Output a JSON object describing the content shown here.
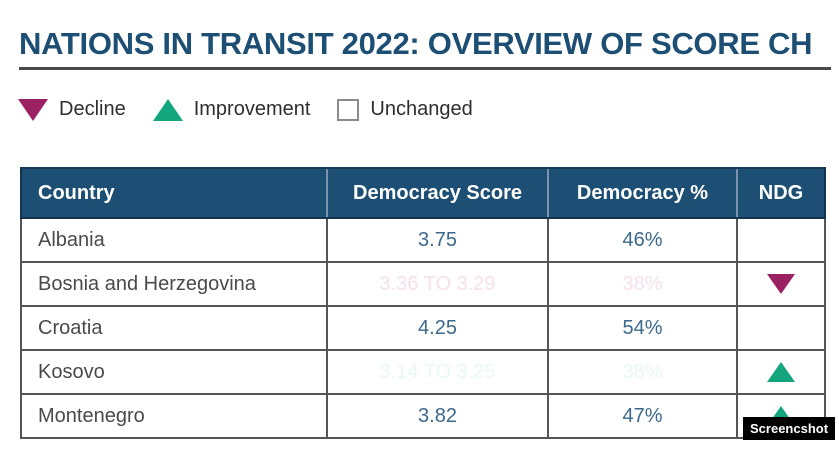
{
  "title": "NATIONS IN TRANSIT 2022: OVERVIEW OF SCORE CH",
  "legend": {
    "decline_label": "Decline",
    "improvement_label": "Improvement",
    "unchanged_label": "Unchanged"
  },
  "chart_data": {
    "type": "table",
    "title": "NATIONS IN TRANSIT 2022: OVERVIEW OF SCORE CH",
    "columns": [
      "Country",
      "Democracy Score",
      "Democracy %",
      "NDG"
    ],
    "rows": [
      {
        "country": "Albania",
        "democracy_score": "3.75",
        "democracy_pct": "46%",
        "ndg": "unchanged"
      },
      {
        "country": "Bosnia and Herzegovina",
        "democracy_score": "3.36 TO 3.29",
        "democracy_pct": "38%",
        "ndg": "decline"
      },
      {
        "country": "Croatia",
        "democracy_score": "4.25",
        "democracy_pct": "54%",
        "ndg": "unchanged"
      },
      {
        "country": "Kosovo",
        "democracy_score": "3.14 TO 3.25",
        "democracy_pct": "38%",
        "ndg": "improvement"
      },
      {
        "country": "Montenegro",
        "democracy_score": "3.82",
        "democracy_pct": "47%",
        "ndg": "improvement"
      }
    ]
  },
  "watermark": "Screencshot",
  "colors": {
    "title-blue": "#1d4e74",
    "header-blue": "#1d4e74",
    "value-blue": "#3c688c",
    "decline": "#9c2162",
    "improvement": "#12a57e"
  }
}
